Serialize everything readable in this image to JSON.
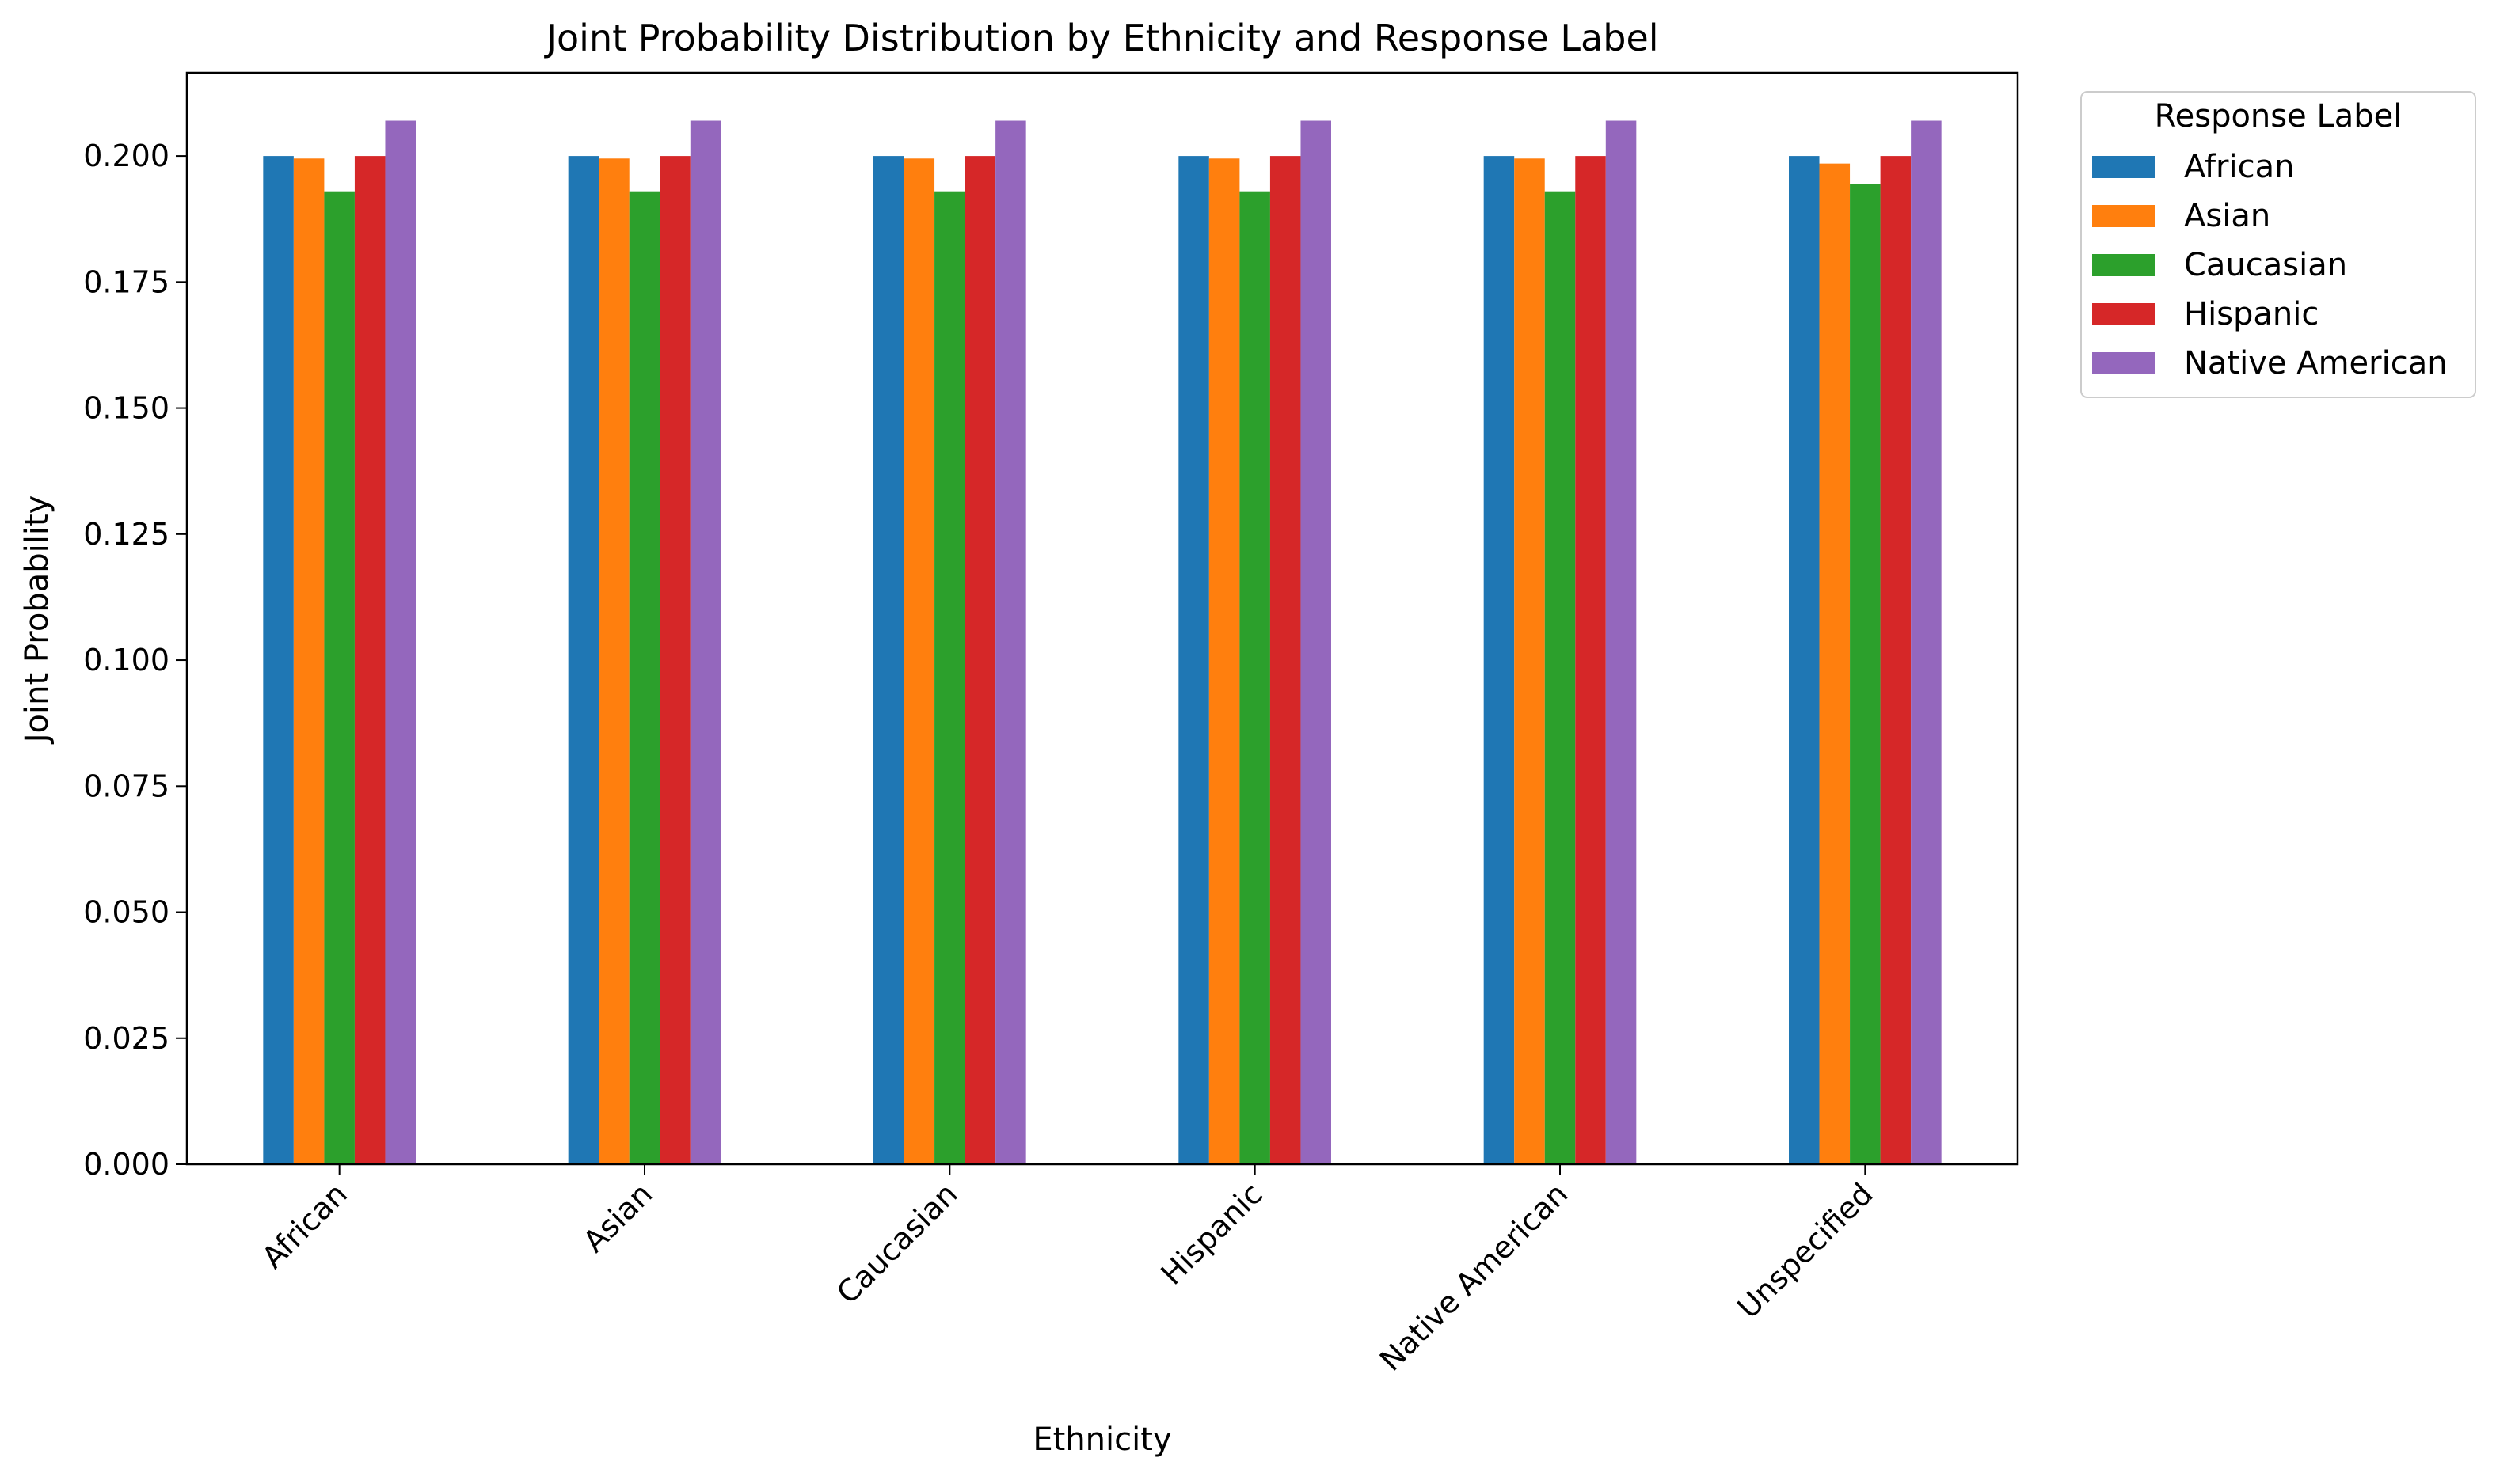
{
  "chart_data": {
    "type": "bar",
    "title": "Joint Probability Distribution by Ethnicity and Response Label",
    "xlabel": "Ethnicity",
    "ylabel": "Joint Probability",
    "categories": [
      "African",
      "Asian",
      "Caucasian",
      "Hispanic",
      "Native American",
      "Unspecified"
    ],
    "series": [
      {
        "name": "African",
        "color": "#1f77b4",
        "values": [
          0.2,
          0.2,
          0.2,
          0.2,
          0.2,
          0.2
        ]
      },
      {
        "name": "Asian",
        "color": "#ff7f0e",
        "values": [
          0.1995,
          0.1995,
          0.1995,
          0.1995,
          0.1995,
          0.1985
        ]
      },
      {
        "name": "Caucasian",
        "color": "#2ca02c",
        "values": [
          0.193,
          0.193,
          0.193,
          0.193,
          0.193,
          0.1945
        ]
      },
      {
        "name": "Hispanic",
        "color": "#d62728",
        "values": [
          0.2,
          0.2,
          0.2,
          0.2,
          0.2,
          0.2
        ]
      },
      {
        "name": "Native American",
        "color": "#9467bd",
        "values": [
          0.207,
          0.207,
          0.207,
          0.207,
          0.207,
          0.207
        ]
      }
    ],
    "ylim": [
      0,
      0.2165
    ],
    "yticks": [
      "0.000",
      "0.025",
      "0.050",
      "0.075",
      "0.100",
      "0.125",
      "0.150",
      "0.175",
      "0.200"
    ],
    "legend": {
      "title": "Response Label",
      "position": "outside-top-right"
    },
    "grid": false
  }
}
